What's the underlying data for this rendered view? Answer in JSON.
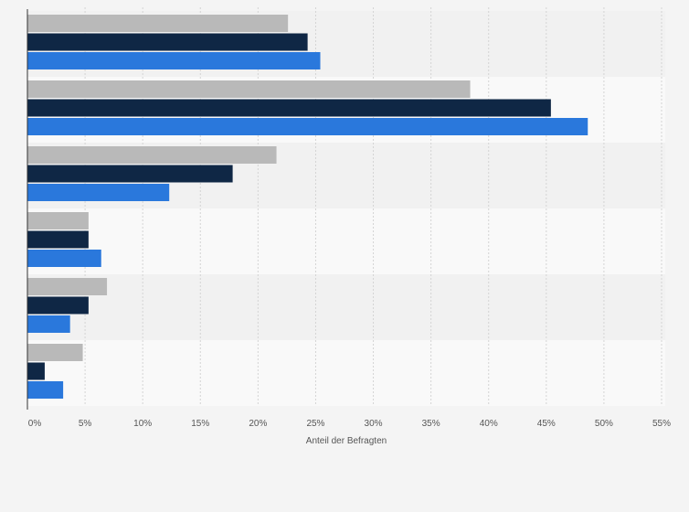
{
  "chart_data": {
    "type": "bar",
    "orientation": "horizontal",
    "categories": [
      "",
      "",
      "",
      "",
      "",
      ""
    ],
    "series": [
      {
        "color": "#b9b9b9",
        "values": [
          22.6,
          38.4,
          21.6,
          5.3,
          6.9,
          4.8
        ]
      },
      {
        "color": "#0f2745",
        "values": [
          24.3,
          45.4,
          17.8,
          5.3,
          5.3,
          1.5
        ]
      },
      {
        "color": "#2a78dc",
        "values": [
          25.4,
          48.6,
          12.3,
          6.4,
          3.7,
          3.1
        ]
      }
    ],
    "xlabel": "Anteil der Befragten",
    "xlim": [
      0,
      55
    ],
    "xticks": [
      0,
      5,
      10,
      15,
      20,
      25,
      30,
      35,
      40,
      45,
      50,
      55
    ],
    "xtick_labels": [
      "0%",
      "5%",
      "10%",
      "15%",
      "20%",
      "25%",
      "30%",
      "35%",
      "40%",
      "45%",
      "50%",
      "55%"
    ],
    "grid": true,
    "band_colors": [
      "#f1f1f1",
      "#f9f9f9"
    ]
  }
}
